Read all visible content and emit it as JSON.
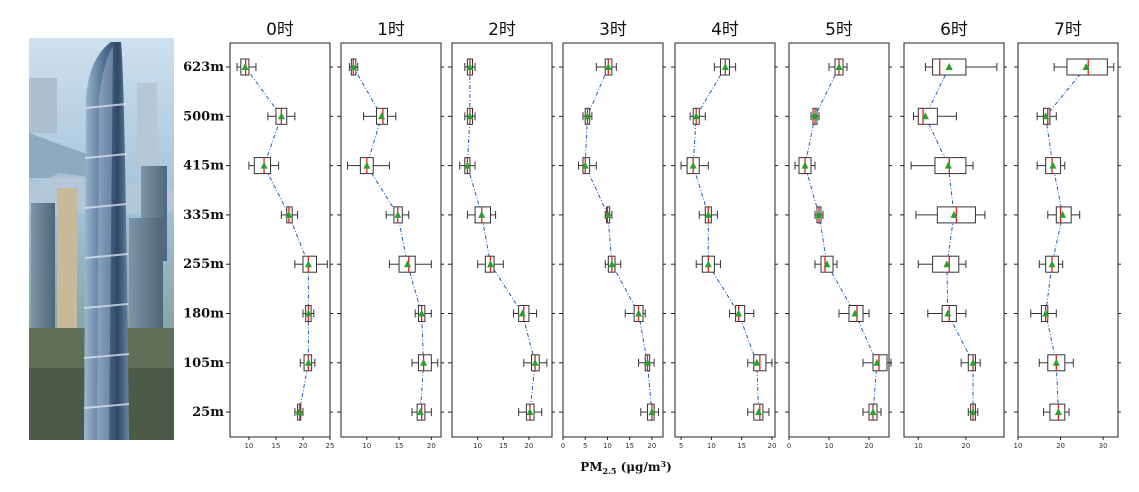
{
  "image": {
    "subject": "tower-photo"
  },
  "chart_data": {
    "type": "box",
    "orientation": "horizontal",
    "xlabel": "PM2.5 (μg/m³)",
    "xlabel_parts": {
      "main": "PM",
      "sub": "2.5",
      "unit": " (μg/m",
      "sup": "3",
      "close": ")"
    },
    "categories": [
      "623m",
      "500m",
      "415m",
      "335m",
      "255m",
      "180m",
      "105m",
      "25m"
    ],
    "colors": {
      "box": "#333333",
      "median": "#e02020",
      "mean": "#2ca02c",
      "mean_line": "#1f5fbf"
    },
    "panels": [
      {
        "title": "0时",
        "xlim": [
          6.5,
          25
        ],
        "ticks": [
          10,
          15,
          20,
          25
        ],
        "boxes": [
          {
            "whislo": 7.8,
            "q1": 8.5,
            "med": 9.4,
            "q3": 10.0,
            "whishi": 11.3,
            "mean": 9.3
          },
          {
            "whislo": 13.5,
            "q1": 15.0,
            "med": 16.0,
            "q3": 17.0,
            "whishi": 18.5,
            "mean": 16.0
          },
          {
            "whislo": 10.0,
            "q1": 11.0,
            "med": 12.8,
            "q3": 14.0,
            "whishi": 15.5,
            "mean": 12.8
          },
          {
            "whislo": 16.0,
            "q1": 17.0,
            "med": 17.4,
            "q3": 18.0,
            "whishi": 19.0,
            "mean": 17.4
          },
          {
            "whislo": 18.5,
            "q1": 20.0,
            "med": 21.0,
            "q3": 22.5,
            "whishi": 24.5,
            "mean": 21.0
          },
          {
            "whislo": 20.0,
            "q1": 20.5,
            "med": 21.0,
            "q3": 21.5,
            "whishi": 22.0,
            "mean": 21.0
          },
          {
            "whislo": 19.5,
            "q1": 20.2,
            "med": 21.0,
            "q3": 21.6,
            "whishi": 22.2,
            "mean": 21.0
          },
          {
            "whislo": 18.5,
            "q1": 19.0,
            "med": 19.4,
            "q3": 19.6,
            "whishi": 20.0,
            "mean": 19.3
          }
        ]
      },
      {
        "title": "1时",
        "xlim": [
          6,
          21.5
        ],
        "ticks": [
          10,
          15,
          20
        ],
        "boxes": [
          {
            "whislo": 7.3,
            "q1": 7.6,
            "med": 7.9,
            "q3": 8.3,
            "whishi": 8.6,
            "mean": 7.9
          },
          {
            "whislo": 9.5,
            "q1": 11.5,
            "med": 12.5,
            "q3": 13.2,
            "whishi": 14.5,
            "mean": 12.3
          },
          {
            "whislo": 7.0,
            "q1": 9.0,
            "med": 10.0,
            "q3": 11.0,
            "whishi": 13.5,
            "mean": 10.0
          },
          {
            "whislo": 13.0,
            "q1": 14.2,
            "med": 14.8,
            "q3": 15.5,
            "whishi": 16.5,
            "mean": 14.8
          },
          {
            "whislo": 13.5,
            "q1": 15.0,
            "med": 16.5,
            "q3": 17.5,
            "whishi": 20.0,
            "mean": 16.3
          },
          {
            "whislo": 17.5,
            "q1": 18.0,
            "med": 18.5,
            "q3": 19.0,
            "whishi": 20.0,
            "mean": 18.5
          },
          {
            "whislo": 17.0,
            "q1": 18.0,
            "med": 18.8,
            "q3": 20.0,
            "whishi": 21.0,
            "mean": 18.8
          },
          {
            "whislo": 17.0,
            "q1": 17.8,
            "med": 18.5,
            "q3": 19.0,
            "whishi": 20.0,
            "mean": 18.3
          }
        ]
      },
      {
        "title": "2时",
        "xlim": [
          5,
          24.5
        ],
        "ticks": [
          10,
          15,
          20
        ],
        "boxes": [
          {
            "whislo": 7.5,
            "q1": 8.0,
            "med": 8.5,
            "q3": 9.0,
            "whishi": 9.5,
            "mean": 8.5
          },
          {
            "whislo": 7.5,
            "q1": 8.0,
            "med": 8.5,
            "q3": 9.0,
            "whishi": 9.5,
            "mean": 8.5
          },
          {
            "whislo": 6.5,
            "q1": 7.5,
            "med": 8.0,
            "q3": 8.5,
            "whishi": 9.5,
            "mean": 8.0
          },
          {
            "whislo": 8.0,
            "q1": 9.5,
            "med": 10.8,
            "q3": 12.5,
            "whishi": 13.5,
            "mean": 10.8
          },
          {
            "whislo": 10.0,
            "q1": 11.5,
            "med": 12.5,
            "q3": 13.2,
            "whishi": 15.0,
            "mean": 12.5
          },
          {
            "whislo": 17.0,
            "q1": 18.0,
            "med": 19.0,
            "q3": 20.0,
            "whishi": 21.5,
            "mean": 18.7
          },
          {
            "whislo": 19.0,
            "q1": 20.5,
            "med": 21.2,
            "q3": 22.0,
            "whishi": 23.5,
            "mean": 21.2
          },
          {
            "whislo": 18.0,
            "q1": 19.5,
            "med": 20.2,
            "q3": 21.0,
            "whishi": 22.5,
            "mean": 20.2
          }
        ]
      },
      {
        "title": "3时",
        "xlim": [
          0,
          22.5
        ],
        "ticks": [
          0,
          5,
          10,
          15,
          20
        ],
        "boxes": [
          {
            "whislo": 7.5,
            "q1": 9.5,
            "med": 10.2,
            "q3": 11.0,
            "whishi": 12.0,
            "mean": 10.2
          },
          {
            "whislo": 4.5,
            "q1": 5.0,
            "med": 5.5,
            "q3": 6.0,
            "whishi": 6.5,
            "mean": 5.5
          },
          {
            "whislo": 3.5,
            "q1": 4.5,
            "med": 5.0,
            "q3": 6.0,
            "whishi": 7.5,
            "mean": 5.0
          },
          {
            "whislo": 9.5,
            "q1": 9.8,
            "med": 10.0,
            "q3": 10.5,
            "whishi": 11.0,
            "mean": 10.1
          },
          {
            "whislo": 9.5,
            "q1": 10.2,
            "med": 11.0,
            "q3": 11.7,
            "whishi": 13.0,
            "mean": 11.0
          },
          {
            "whislo": 14.0,
            "q1": 16.0,
            "med": 17.0,
            "q3": 18.0,
            "whishi": 18.5,
            "mean": 17.0
          },
          {
            "whislo": 17.0,
            "q1": 18.5,
            "med": 19.0,
            "q3": 19.5,
            "whishi": 20.5,
            "mean": 19.0
          },
          {
            "whislo": 17.5,
            "q1": 19.0,
            "med": 20.0,
            "q3": 20.5,
            "whishi": 21.5,
            "mean": 20.0
          }
        ]
      },
      {
        "title": "4时",
        "xlim": [
          4,
          20.5
        ],
        "ticks": [
          5,
          10,
          15,
          20
        ],
        "boxes": [
          {
            "whislo": 10.5,
            "q1": 11.5,
            "med": 12.3,
            "q3": 13.0,
            "whishi": 14.0,
            "mean": 12.3
          },
          {
            "whislo": 6.5,
            "q1": 7.0,
            "med": 7.5,
            "q3": 8.0,
            "whishi": 9.0,
            "mean": 7.5
          },
          {
            "whislo": 5.0,
            "q1": 6.0,
            "med": 7.0,
            "q3": 8.0,
            "whishi": 9.5,
            "mean": 7.0
          },
          {
            "whislo": 8.0,
            "q1": 9.0,
            "med": 9.5,
            "q3": 10.0,
            "whishi": 11.0,
            "mean": 9.5
          },
          {
            "whislo": 7.5,
            "q1": 8.5,
            "med": 9.5,
            "q3": 10.5,
            "whishi": 11.5,
            "mean": 9.5
          },
          {
            "whislo": 13.0,
            "q1": 14.0,
            "med": 14.5,
            "q3": 15.5,
            "whishi": 17.0,
            "mean": 14.5
          },
          {
            "whislo": 16.0,
            "q1": 17.0,
            "med": 18.0,
            "q3": 19.0,
            "whishi": 20.0,
            "mean": 17.5
          },
          {
            "whislo": 16.0,
            "q1": 17.0,
            "med": 18.0,
            "q3": 18.5,
            "whishi": 19.5,
            "mean": 17.8
          }
        ]
      },
      {
        "title": "5时",
        "xlim": [
          0,
          25
        ],
        "ticks": [
          0,
          10,
          20
        ],
        "boxes": [
          {
            "whislo": 10.0,
            "q1": 11.5,
            "med": 12.5,
            "q3": 13.5,
            "whishi": 14.5,
            "mean": 12.5
          },
          {
            "whislo": 5.5,
            "q1": 6.0,
            "med": 6.5,
            "q3": 7.0,
            "whishi": 7.5,
            "mean": 6.5
          },
          {
            "whislo": 1.5,
            "q1": 2.5,
            "med": 4.0,
            "q3": 5.5,
            "whishi": 6.5,
            "mean": 4.0
          },
          {
            "whislo": 6.5,
            "q1": 7.0,
            "med": 7.5,
            "q3": 8.0,
            "whishi": 8.5,
            "mean": 7.5
          },
          {
            "whislo": 6.5,
            "q1": 8.0,
            "med": 9.0,
            "q3": 11.0,
            "whishi": 12.0,
            "mean": 9.5
          },
          {
            "whislo": 12.5,
            "q1": 15.0,
            "med": 17.0,
            "q3": 18.5,
            "whishi": 20.0,
            "mean": 16.5
          },
          {
            "whislo": 18.5,
            "q1": 21.0,
            "med": 22.5,
            "q3": 24.5,
            "whishi": 25.5,
            "mean": 22.0
          },
          {
            "whislo": 18.5,
            "q1": 20.0,
            "med": 21.0,
            "q3": 22.0,
            "whishi": 23.0,
            "mean": 21.0
          }
        ]
      },
      {
        "title": "6时",
        "xlim": [
          7,
          28
        ],
        "ticks": [
          10,
          20
        ],
        "boxes": [
          {
            "whislo": 11.5,
            "q1": 13.0,
            "med": 14.5,
            "q3": 20.0,
            "whishi": 26.5,
            "mean": 16.5
          },
          {
            "whislo": 9.0,
            "q1": 10.0,
            "med": 11.0,
            "q3": 14.0,
            "whishi": 18.0,
            "mean": 11.5
          },
          {
            "whislo": 8.5,
            "q1": 13.5,
            "med": 16.5,
            "q3": 20.0,
            "whishi": 21.5,
            "mean": 16.3
          },
          {
            "whislo": 9.5,
            "q1": 14.0,
            "med": 18.0,
            "q3": 22.0,
            "whishi": 24.0,
            "mean": 17.5
          },
          {
            "whislo": 10.0,
            "q1": 13.0,
            "med": 16.5,
            "q3": 18.5,
            "whishi": 20.0,
            "mean": 16.0
          },
          {
            "whislo": 12.0,
            "q1": 15.0,
            "med": 16.5,
            "q3": 18.0,
            "whishi": 20.0,
            "mean": 16.2
          },
          {
            "whislo": 19.0,
            "q1": 20.5,
            "med": 21.5,
            "q3": 22.0,
            "whishi": 23.0,
            "mean": 21.5
          },
          {
            "whislo": 20.5,
            "q1": 21.0,
            "med": 21.5,
            "q3": 22.0,
            "whishi": 22.5,
            "mean": 21.5
          }
        ]
      },
      {
        "title": "7时",
        "xlim": [
          10,
          33.5
        ],
        "ticks": [
          10,
          20,
          30
        ],
        "boxes": [
          {
            "whislo": 18.5,
            "q1": 21.5,
            "med": 26.5,
            "q3": 31.0,
            "whishi": 32.5,
            "mean": 26.0
          },
          {
            "whislo": 14.5,
            "q1": 16.0,
            "med": 17.0,
            "q3": 17.5,
            "whishi": 19.0,
            "mean": 16.5
          },
          {
            "whislo": 14.5,
            "q1": 16.5,
            "med": 18.0,
            "q3": 20.0,
            "whishi": 21.0,
            "mean": 18.2
          },
          {
            "whislo": 17.0,
            "q1": 19.0,
            "med": 20.0,
            "q3": 22.5,
            "whishi": 24.5,
            "mean": 20.5
          },
          {
            "whislo": 15.0,
            "q1": 16.5,
            "med": 18.0,
            "q3": 19.5,
            "whishi": 20.5,
            "mean": 18.0
          },
          {
            "whislo": 13.0,
            "q1": 15.5,
            "med": 16.5,
            "q3": 17.0,
            "whishi": 19.0,
            "mean": 16.5
          },
          {
            "whislo": 15.0,
            "q1": 17.0,
            "med": 19.0,
            "q3": 21.0,
            "whishi": 23.0,
            "mean": 19.0
          },
          {
            "whislo": 16.0,
            "q1": 17.5,
            "med": 19.5,
            "q3": 21.0,
            "whishi": 22.0,
            "mean": 19.5
          }
        ]
      }
    ]
  }
}
